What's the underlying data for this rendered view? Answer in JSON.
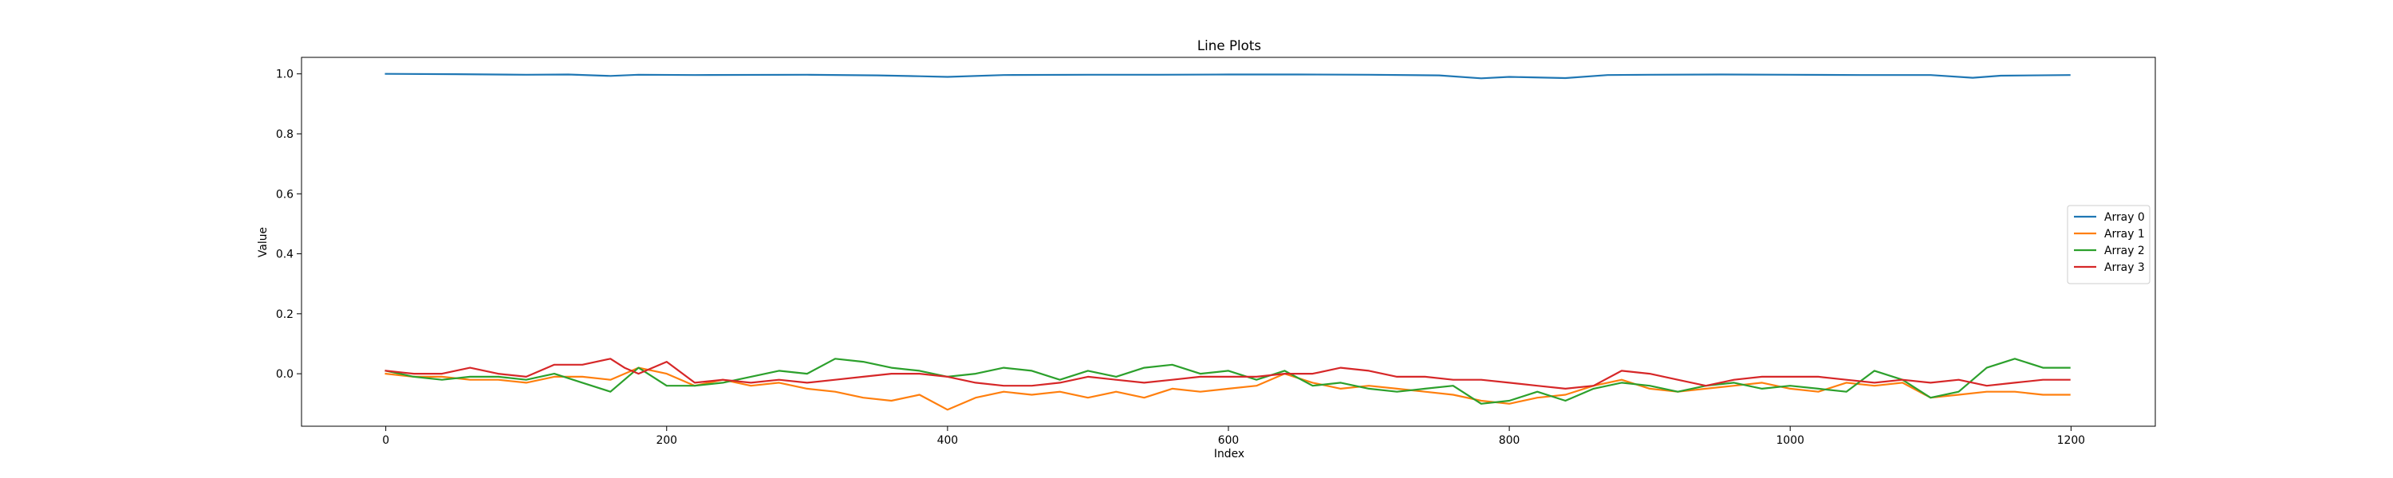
{
  "chart_data": {
    "type": "line",
    "title": "Line Plots",
    "xlabel": "Index",
    "ylabel": "Value",
    "xlim": [
      -60,
      1260
    ],
    "ylim": [
      -0.175,
      1.055
    ],
    "xticks": [
      0,
      200,
      400,
      600,
      800,
      1000,
      1200
    ],
    "yticks": [
      0.0,
      0.2,
      0.4,
      0.6,
      0.8,
      1.0
    ],
    "xtick_labels": [
      "0",
      "200",
      "400",
      "600",
      "800",
      "1000",
      "1200"
    ],
    "ytick_labels": [
      "0.0",
      "0.2",
      "0.4",
      "0.6",
      "0.8",
      "1.0"
    ],
    "legend_position": "center-right",
    "grid": false,
    "series": [
      {
        "name": "Array 0",
        "color": "#1f77b4",
        "x": [
          0,
          50,
          100,
          130,
          160,
          180,
          220,
          300,
          350,
          380,
          400,
          440,
          500,
          550,
          600,
          650,
          700,
          750,
          780,
          800,
          840,
          870,
          900,
          950,
          1000,
          1050,
          1100,
          1130,
          1150,
          1199
        ],
        "y": [
          1.0,
          0.999,
          0.997,
          0.998,
          0.993,
          0.997,
          0.996,
          0.997,
          0.995,
          0.992,
          0.99,
          0.996,
          0.997,
          0.997,
          0.998,
          0.998,
          0.997,
          0.995,
          0.985,
          0.99,
          0.986,
          0.996,
          0.997,
          0.998,
          0.997,
          0.996,
          0.996,
          0.987,
          0.994,
          0.996
        ]
      },
      {
        "name": "Array 1",
        "color": "#ff7f0e",
        "x": [
          0,
          20,
          40,
          60,
          80,
          100,
          120,
          140,
          160,
          180,
          200,
          220,
          240,
          260,
          280,
          300,
          320,
          340,
          360,
          380,
          400,
          420,
          440,
          460,
          480,
          500,
          520,
          540,
          560,
          580,
          600,
          620,
          640,
          660,
          680,
          700,
          720,
          740,
          760,
          780,
          800,
          820,
          840,
          860,
          880,
          900,
          920,
          940,
          960,
          980,
          1000,
          1020,
          1040,
          1060,
          1080,
          1100,
          1120,
          1140,
          1160,
          1180,
          1199
        ],
        "y": [
          0.0,
          -0.01,
          -0.01,
          -0.02,
          -0.02,
          -0.03,
          -0.01,
          -0.01,
          -0.02,
          0.02,
          0.0,
          -0.04,
          -0.02,
          -0.04,
          -0.03,
          -0.05,
          -0.06,
          -0.08,
          -0.09,
          -0.07,
          -0.12,
          -0.08,
          -0.06,
          -0.07,
          -0.06,
          -0.08,
          -0.06,
          -0.08,
          -0.05,
          -0.06,
          -0.05,
          -0.04,
          0.0,
          -0.03,
          -0.05,
          -0.04,
          -0.05,
          -0.06,
          -0.07,
          -0.09,
          -0.1,
          -0.08,
          -0.07,
          -0.04,
          -0.02,
          -0.05,
          -0.06,
          -0.05,
          -0.04,
          -0.03,
          -0.05,
          -0.06,
          -0.03,
          -0.04,
          -0.03,
          -0.08,
          -0.07,
          -0.06,
          -0.06,
          -0.07,
          -0.07
        ]
      },
      {
        "name": "Array 2",
        "color": "#2ca02c",
        "x": [
          0,
          20,
          40,
          60,
          80,
          100,
          120,
          140,
          160,
          180,
          200,
          220,
          240,
          260,
          280,
          300,
          320,
          340,
          360,
          380,
          400,
          420,
          440,
          460,
          480,
          500,
          520,
          540,
          560,
          580,
          600,
          620,
          640,
          660,
          680,
          700,
          720,
          740,
          760,
          780,
          800,
          820,
          840,
          860,
          880,
          900,
          920,
          940,
          960,
          980,
          1000,
          1020,
          1040,
          1060,
          1080,
          1100,
          1120,
          1140,
          1160,
          1180,
          1199
        ],
        "y": [
          0.01,
          -0.01,
          -0.02,
          -0.01,
          -0.01,
          -0.02,
          0.0,
          -0.03,
          -0.06,
          0.02,
          -0.04,
          -0.04,
          -0.03,
          -0.01,
          0.01,
          0.0,
          0.05,
          0.04,
          0.02,
          0.01,
          -0.01,
          0.0,
          0.02,
          0.01,
          -0.02,
          0.01,
          -0.01,
          0.02,
          0.03,
          0.0,
          0.01,
          -0.02,
          0.01,
          -0.04,
          -0.03,
          -0.05,
          -0.06,
          -0.05,
          -0.04,
          -0.1,
          -0.09,
          -0.06,
          -0.09,
          -0.05,
          -0.03,
          -0.04,
          -0.06,
          -0.04,
          -0.03,
          -0.05,
          -0.04,
          -0.05,
          -0.06,
          0.01,
          -0.02,
          -0.08,
          -0.06,
          0.02,
          0.05,
          0.02,
          0.02
        ]
      },
      {
        "name": "Array 3",
        "color": "#d62728",
        "x": [
          0,
          20,
          40,
          60,
          80,
          100,
          120,
          140,
          160,
          170,
          180,
          200,
          220,
          240,
          260,
          280,
          300,
          320,
          340,
          360,
          380,
          400,
          420,
          440,
          460,
          480,
          500,
          520,
          540,
          560,
          580,
          600,
          620,
          640,
          660,
          680,
          700,
          720,
          740,
          760,
          780,
          800,
          820,
          840,
          860,
          880,
          900,
          920,
          940,
          960,
          980,
          1000,
          1020,
          1040,
          1060,
          1080,
          1100,
          1120,
          1140,
          1160,
          1180,
          1199
        ],
        "y": [
          0.01,
          0.0,
          0.0,
          0.02,
          0.0,
          -0.01,
          0.03,
          0.03,
          0.05,
          0.02,
          0.0,
          0.04,
          -0.03,
          -0.02,
          -0.03,
          -0.02,
          -0.03,
          -0.02,
          -0.01,
          0.0,
          0.0,
          -0.01,
          -0.03,
          -0.04,
          -0.04,
          -0.03,
          -0.01,
          -0.02,
          -0.03,
          -0.02,
          -0.01,
          -0.01,
          -0.01,
          0.0,
          0.0,
          0.02,
          0.01,
          -0.01,
          -0.01,
          -0.02,
          -0.02,
          -0.03,
          -0.04,
          -0.05,
          -0.04,
          0.01,
          0.0,
          -0.02,
          -0.04,
          -0.02,
          -0.01,
          -0.01,
          -0.01,
          -0.02,
          -0.03,
          -0.02,
          -0.03,
          -0.02,
          -0.04,
          -0.03,
          -0.02,
          -0.02
        ]
      }
    ]
  }
}
